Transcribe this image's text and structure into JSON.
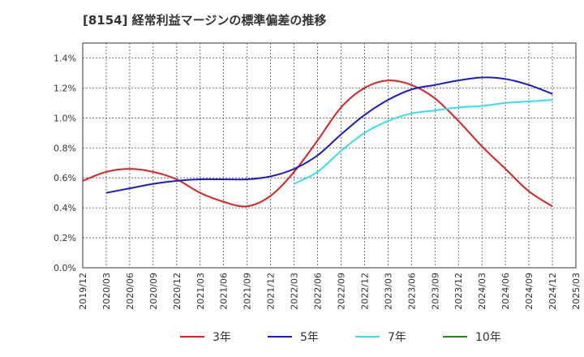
{
  "chart_data": {
    "type": "line",
    "title": "[8154]  経常利益マージンの標準偏差の推移",
    "xlabel": "",
    "ylabel": "",
    "ylim": [
      0,
      1.5
    ],
    "y_ticks": [
      0.0,
      0.2,
      0.4,
      0.6,
      0.8,
      1.0,
      1.2,
      1.4
    ],
    "y_tick_labels": [
      "0.0%",
      "0.2%",
      "0.4%",
      "0.6%",
      "0.8%",
      "1.0%",
      "1.2%",
      "1.4%"
    ],
    "x_tick_labels": [
      "2019/12",
      "2020/03",
      "2020/06",
      "2020/09",
      "2020/12",
      "2021/03",
      "2021/06",
      "2021/09",
      "2021/12",
      "2022/03",
      "2022/06",
      "2022/09",
      "2022/12",
      "2023/03",
      "2023/06",
      "2023/09",
      "2023/12",
      "2024/03",
      "2024/06",
      "2024/09",
      "2024/12",
      "2025/03"
    ],
    "grid": true,
    "legend_position": "bottom",
    "series": [
      {
        "name": "3年",
        "color": "#e02020",
        "x": [
          "2019/12",
          "2020/03",
          "2020/06",
          "2020/09",
          "2020/12",
          "2021/03",
          "2021/06",
          "2021/09",
          "2021/12",
          "2022/03",
          "2022/06",
          "2022/09",
          "2022/12",
          "2023/03",
          "2023/06",
          "2023/09",
          "2023/12",
          "2024/03",
          "2024/06",
          "2024/09",
          "2024/12"
        ],
        "values": [
          0.58,
          0.64,
          0.66,
          0.64,
          0.59,
          0.5,
          0.44,
          0.41,
          0.48,
          0.64,
          0.85,
          1.07,
          1.2,
          1.25,
          1.22,
          1.13,
          0.98,
          0.81,
          0.66,
          0.51,
          0.41
        ]
      },
      {
        "name": "5年",
        "color": "#1a1acc",
        "x": [
          "2020/03",
          "2020/06",
          "2020/09",
          "2020/12",
          "2021/03",
          "2021/06",
          "2021/09",
          "2021/12",
          "2022/03",
          "2022/06",
          "2022/09",
          "2022/12",
          "2023/03",
          "2023/06",
          "2023/09",
          "2023/12",
          "2024/03",
          "2024/06",
          "2024/09",
          "2024/12"
        ],
        "values": [
          0.5,
          0.53,
          0.56,
          0.58,
          0.59,
          0.59,
          0.59,
          0.61,
          0.66,
          0.75,
          0.89,
          1.02,
          1.12,
          1.19,
          1.22,
          1.25,
          1.27,
          1.26,
          1.22,
          1.16
        ]
      },
      {
        "name": "7年",
        "color": "#33e0f0",
        "x": [
          "2022/03",
          "2022/06",
          "2022/09",
          "2022/12",
          "2023/03",
          "2023/06",
          "2023/09",
          "2023/12",
          "2024/03",
          "2024/06",
          "2024/09",
          "2024/12"
        ],
        "values": [
          0.56,
          0.64,
          0.78,
          0.9,
          0.98,
          1.03,
          1.05,
          1.07,
          1.08,
          1.1,
          1.11,
          1.12
        ]
      },
      {
        "name": "10年",
        "color": "#1a8a1a",
        "x": [],
        "values": []
      }
    ]
  }
}
